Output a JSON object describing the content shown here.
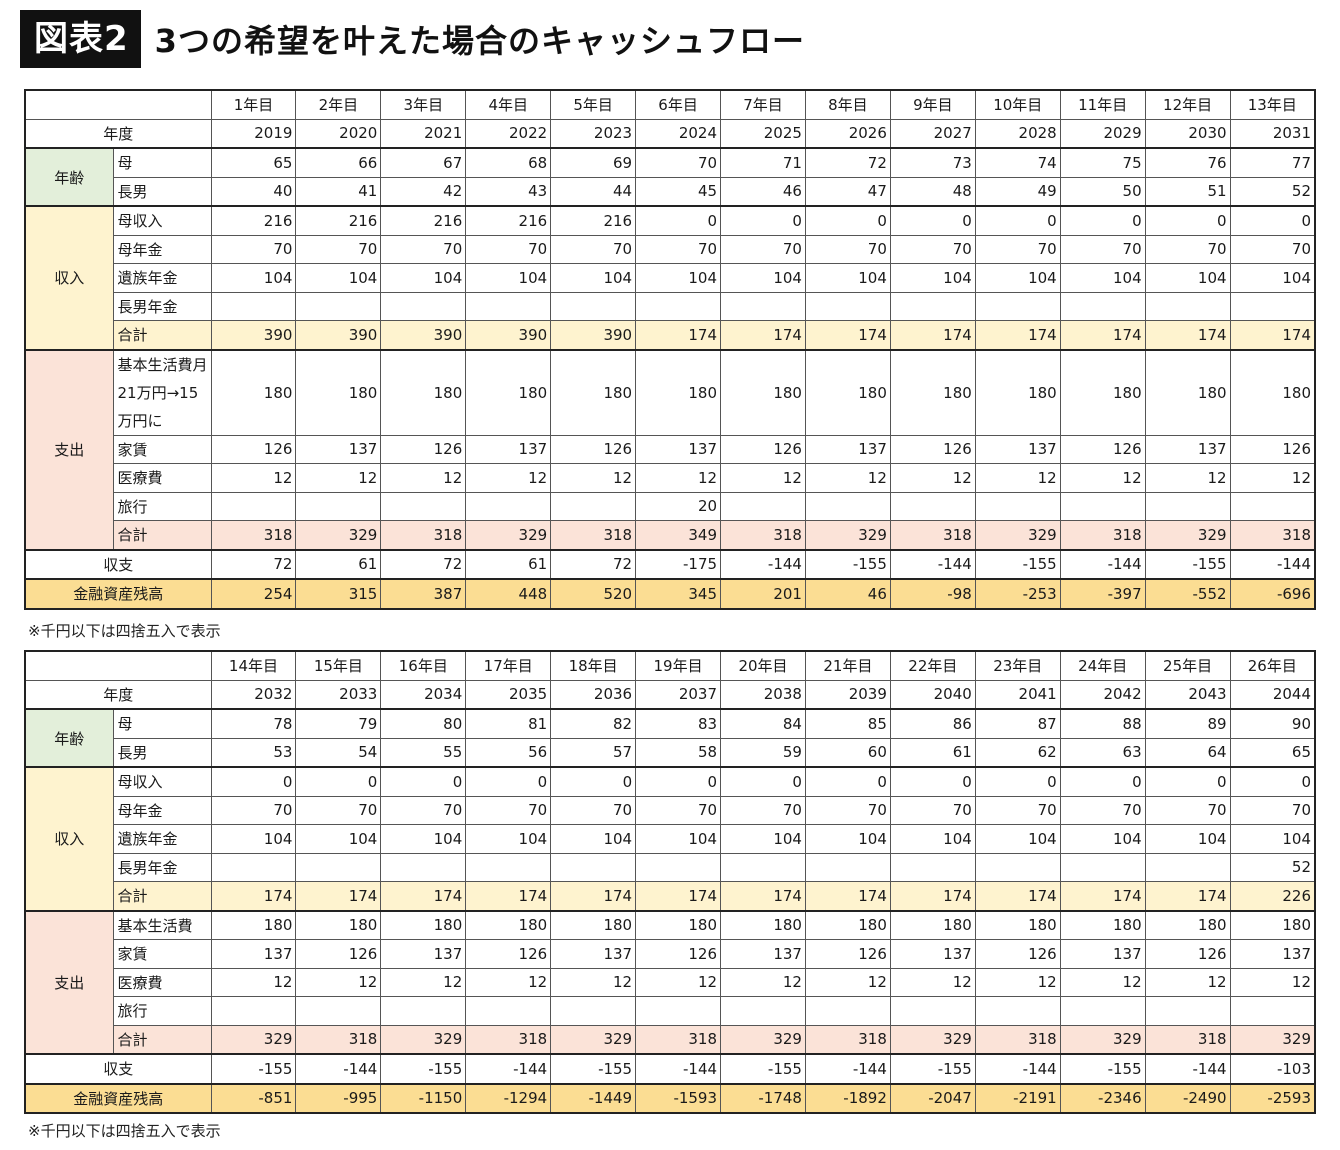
{
  "header": {
    "badge": "図表2",
    "title": "3つの希望を叶えた場合のキャッシュフロー"
  },
  "labels": {
    "year": "年度",
    "age": "年齢",
    "income": "収入",
    "expense": "支出",
    "balance": "収支",
    "assets": "金融資産残高",
    "mother": "母",
    "son": "長男",
    "mother_income": "母収入",
    "mother_pension": "母年金",
    "survivor_pension": "遺族年金",
    "son_pension": "長男年金",
    "total": "合計",
    "living_long": "基本生活費月21万円→15万円に",
    "living": "基本生活費",
    "rent": "家賃",
    "medical": "医療費",
    "travel": "旅行"
  },
  "tables": [
    {
      "periods": [
        "1年目",
        "2年目",
        "3年目",
        "4年目",
        "5年目",
        "6年目",
        "7年目",
        "8年目",
        "9年目",
        "10年目",
        "11年目",
        "12年目",
        "13年目"
      ],
      "years": [
        "2019",
        "2020",
        "2021",
        "2022",
        "2023",
        "2024",
        "2025",
        "2026",
        "2027",
        "2028",
        "2029",
        "2030",
        "2031"
      ],
      "mother_age": [
        "65",
        "66",
        "67",
        "68",
        "69",
        "70",
        "71",
        "72",
        "73",
        "74",
        "75",
        "76",
        "77"
      ],
      "son_age": [
        "40",
        "41",
        "42",
        "43",
        "44",
        "45",
        "46",
        "47",
        "48",
        "49",
        "50",
        "51",
        "52"
      ],
      "mother_income": [
        "216",
        "216",
        "216",
        "216",
        "216",
        "0",
        "0",
        "0",
        "0",
        "0",
        "0",
        "0",
        "0"
      ],
      "mother_pension": [
        "70",
        "70",
        "70",
        "70",
        "70",
        "70",
        "70",
        "70",
        "70",
        "70",
        "70",
        "70",
        "70"
      ],
      "survivor_pension": [
        "104",
        "104",
        "104",
        "104",
        "104",
        "104",
        "104",
        "104",
        "104",
        "104",
        "104",
        "104",
        "104"
      ],
      "son_pension": [
        "",
        "",
        "",
        "",
        "",
        "",
        "",
        "",
        "",
        "",
        "",
        "",
        ""
      ],
      "income_total": [
        "390",
        "390",
        "390",
        "390",
        "390",
        "174",
        "174",
        "174",
        "174",
        "174",
        "174",
        "174",
        "174"
      ],
      "living": [
        "180",
        "180",
        "180",
        "180",
        "180",
        "180",
        "180",
        "180",
        "180",
        "180",
        "180",
        "180",
        "180"
      ],
      "rent": [
        "126",
        "137",
        "126",
        "137",
        "126",
        "137",
        "126",
        "137",
        "126",
        "137",
        "126",
        "137",
        "126"
      ],
      "medical": [
        "12",
        "12",
        "12",
        "12",
        "12",
        "12",
        "12",
        "12",
        "12",
        "12",
        "12",
        "12",
        "12"
      ],
      "travel": [
        "",
        "",
        "",
        "",
        "",
        "20",
        "",
        "",
        "",
        "",
        "",
        "",
        ""
      ],
      "expense_total": [
        "318",
        "329",
        "318",
        "329",
        "318",
        "349",
        "318",
        "329",
        "318",
        "329",
        "318",
        "329",
        "318"
      ],
      "balance": [
        "72",
        "61",
        "72",
        "61",
        "72",
        "-175",
        "-144",
        "-155",
        "-144",
        "-155",
        "-144",
        "-155",
        "-144"
      ],
      "assets": [
        "254",
        "315",
        "387",
        "448",
        "520",
        "345",
        "201",
        "46",
        "-98",
        "-253",
        "-397",
        "-552",
        "-696"
      ],
      "note": "※千円以下は四捨五入で表示"
    },
    {
      "periods": [
        "14年目",
        "15年目",
        "16年目",
        "17年目",
        "18年目",
        "19年目",
        "20年目",
        "21年目",
        "22年目",
        "23年目",
        "24年目",
        "25年目",
        "26年目"
      ],
      "years": [
        "2032",
        "2033",
        "2034",
        "2035",
        "2036",
        "2037",
        "2038",
        "2039",
        "2040",
        "2041",
        "2042",
        "2043",
        "2044"
      ],
      "mother_age": [
        "78",
        "79",
        "80",
        "81",
        "82",
        "83",
        "84",
        "85",
        "86",
        "87",
        "88",
        "89",
        "90"
      ],
      "son_age": [
        "53",
        "54",
        "55",
        "56",
        "57",
        "58",
        "59",
        "60",
        "61",
        "62",
        "63",
        "64",
        "65"
      ],
      "mother_income": [
        "0",
        "0",
        "0",
        "0",
        "0",
        "0",
        "0",
        "0",
        "0",
        "0",
        "0",
        "0",
        "0"
      ],
      "mother_pension": [
        "70",
        "70",
        "70",
        "70",
        "70",
        "70",
        "70",
        "70",
        "70",
        "70",
        "70",
        "70",
        "70"
      ],
      "survivor_pension": [
        "104",
        "104",
        "104",
        "104",
        "104",
        "104",
        "104",
        "104",
        "104",
        "104",
        "104",
        "104",
        "104"
      ],
      "son_pension": [
        "",
        "",
        "",
        "",
        "",
        "",
        "",
        "",
        "",
        "",
        "",
        "",
        "52"
      ],
      "income_total": [
        "174",
        "174",
        "174",
        "174",
        "174",
        "174",
        "174",
        "174",
        "174",
        "174",
        "174",
        "174",
        "226"
      ],
      "living": [
        "180",
        "180",
        "180",
        "180",
        "180",
        "180",
        "180",
        "180",
        "180",
        "180",
        "180",
        "180",
        "180"
      ],
      "rent": [
        "137",
        "126",
        "137",
        "126",
        "137",
        "126",
        "137",
        "126",
        "137",
        "126",
        "137",
        "126",
        "137"
      ],
      "medical": [
        "12",
        "12",
        "12",
        "12",
        "12",
        "12",
        "12",
        "12",
        "12",
        "12",
        "12",
        "12",
        "12"
      ],
      "travel": [
        "",
        "",
        "",
        "",
        "",
        "",
        "",
        "",
        "",
        "",
        "",
        "",
        ""
      ],
      "expense_total": [
        "329",
        "318",
        "329",
        "318",
        "329",
        "318",
        "329",
        "318",
        "329",
        "318",
        "329",
        "318",
        "329"
      ],
      "balance": [
        "-155",
        "-144",
        "-155",
        "-144",
        "-155",
        "-144",
        "-155",
        "-144",
        "-155",
        "-144",
        "-155",
        "-144",
        "-103"
      ],
      "assets": [
        "-851",
        "-995",
        "-1150",
        "-1294",
        "-1449",
        "-1593",
        "-1748",
        "-1892",
        "-2047",
        "-2191",
        "-2346",
        "-2490",
        "-2593"
      ],
      "note": "※千円以下は四捨五入で表示"
    }
  ]
}
